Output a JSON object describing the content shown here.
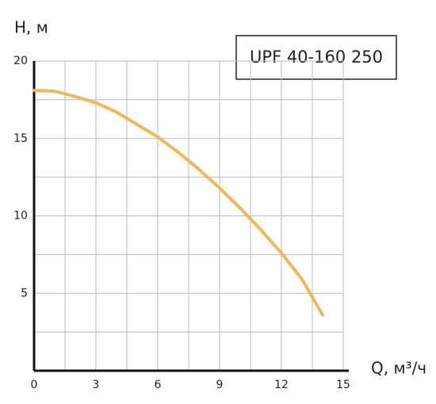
{
  "chart_data": {
    "type": "line",
    "title": "UPF 40-160 250",
    "x_label": "Q, м³/ч",
    "y_label": "H, м",
    "x": [
      0,
      1,
      2,
      3,
      4,
      5,
      6,
      7,
      8,
      9,
      10,
      11,
      12,
      13,
      14
    ],
    "series": [
      {
        "name": "UPF 40-160 250",
        "color": "#efb85a",
        "values": [
          18.1,
          18.05,
          17.7,
          17.3,
          16.7,
          15.9,
          15.1,
          14.1,
          13.0,
          11.8,
          10.5,
          9.1,
          7.6,
          5.9,
          3.6
        ]
      }
    ],
    "xlim": [
      0,
      15
    ],
    "ylim": [
      0,
      20
    ],
    "xticks": [
      0,
      3,
      6,
      9,
      12,
      15
    ],
    "yticks": [
      5,
      10,
      15,
      20
    ],
    "grid": true,
    "minor_grid": true
  }
}
